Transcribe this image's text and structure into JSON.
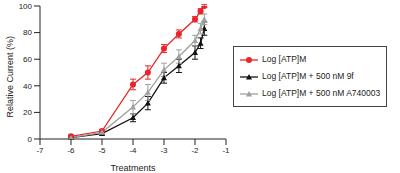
{
  "chart_data": {
    "type": "line",
    "x_label": "Treatments",
    "y_label": "Relative Current (%)",
    "x": [
      -6,
      -5,
      -4,
      -3.52,
      -3,
      -2.52,
      -2,
      -1.82,
      -1.7
    ],
    "xlim": [
      -7,
      -1
    ],
    "xticks": [
      -7,
      -6,
      -5,
      -4,
      -3,
      -2,
      -1
    ],
    "ylim": [
      0,
      100
    ],
    "yticks": [
      0,
      20,
      40,
      60,
      80,
      100
    ],
    "grid": false,
    "legend": "right",
    "series": [
      {
        "name": "Log [ATP]M",
        "color": "#e8262a",
        "marker": "circle",
        "values": [
          2,
          6,
          41,
          50,
          68,
          79,
          90,
          96,
          100
        ],
        "errors": [
          1,
          1,
          4,
          5,
          3,
          3,
          2,
          2,
          1
        ]
      },
      {
        "name": "Log [ATP]M + 500 nM 9f",
        "color": "#111111",
        "marker": "triangle",
        "values": [
          1,
          4,
          16,
          27,
          46,
          55,
          65,
          72,
          83
        ],
        "errors": [
          1,
          1,
          3,
          5,
          4,
          5,
          5,
          4,
          5
        ]
      },
      {
        "name": "Log [ATP]M + 500 nM A740003",
        "color": "#a0a0a0",
        "marker": "triangle",
        "values": [
          1,
          5,
          24,
          35,
          52,
          62,
          74,
          83,
          90
        ],
        "errors": [
          1,
          1,
          5,
          6,
          5,
          5,
          4,
          4,
          4
        ]
      }
    ]
  }
}
